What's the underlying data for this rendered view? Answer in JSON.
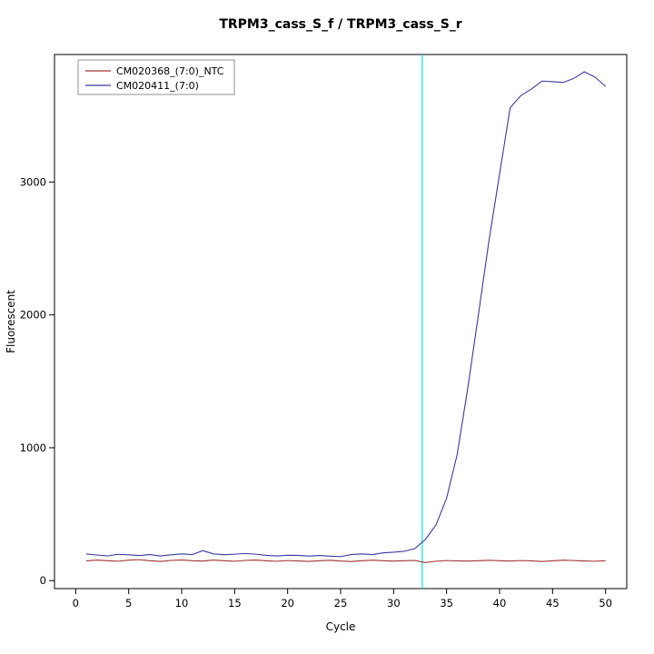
{
  "chart_data": {
    "type": "line",
    "title": "TRPM3_cass_S_f / TRPM3_cass_S_r",
    "xlabel": "Cycle",
    "ylabel": "Fluorescent",
    "xlim": [
      -2,
      52
    ],
    "ylim": [
      -60,
      3960
    ],
    "xticks": [
      0,
      5,
      10,
      15,
      20,
      25,
      30,
      35,
      40,
      45,
      50
    ],
    "yticks": [
      0,
      1000,
      2000,
      3000
    ],
    "grid": false,
    "legend_position": "top-left",
    "threshold_line": {
      "x": 32.7,
      "color": "#00e5ee"
    },
    "x": [
      1,
      2,
      3,
      4,
      5,
      6,
      7,
      8,
      9,
      10,
      11,
      12,
      13,
      14,
      15,
      16,
      17,
      18,
      19,
      20,
      21,
      22,
      23,
      24,
      25,
      26,
      27,
      28,
      29,
      30,
      31,
      32,
      33,
      34,
      35,
      36,
      37,
      38,
      39,
      40,
      41,
      42,
      43,
      44,
      45,
      46,
      47,
      48,
      49,
      50
    ],
    "series": [
      {
        "name": "CM020368_(7:0)_NTC",
        "color": "#a03333",
        "values": [
          148,
          155,
          150,
          146,
          154,
          158,
          150,
          145,
          152,
          156,
          150,
          147,
          155,
          150,
          146,
          152,
          155,
          149,
          146,
          151,
          148,
          145,
          150,
          153,
          147,
          144,
          150,
          154,
          150,
          147,
          150,
          152,
          136,
          146,
          151,
          149,
          147,
          150,
          153,
          150,
          147,
          151,
          149,
          144,
          149,
          154,
          151,
          148,
          146,
          150
        ]
      },
      {
        "name": "CM020411_(7:0)",
        "color": "#3a3a9e",
        "values": [
          200,
          193,
          186,
          198,
          194,
          189,
          196,
          186,
          194,
          201,
          196,
          226,
          201,
          195,
          199,
          204,
          199,
          190,
          186,
          191,
          190,
          185,
          189,
          184,
          181,
          196,
          201,
          196,
          209,
          214,
          221,
          241,
          310,
          420,
          620,
          950,
          1450,
          2000,
          2560,
          3060,
          3560,
          3650,
          3700,
          3760,
          3755,
          3750,
          3780,
          3830,
          3790,
          3720
        ]
      }
    ]
  }
}
